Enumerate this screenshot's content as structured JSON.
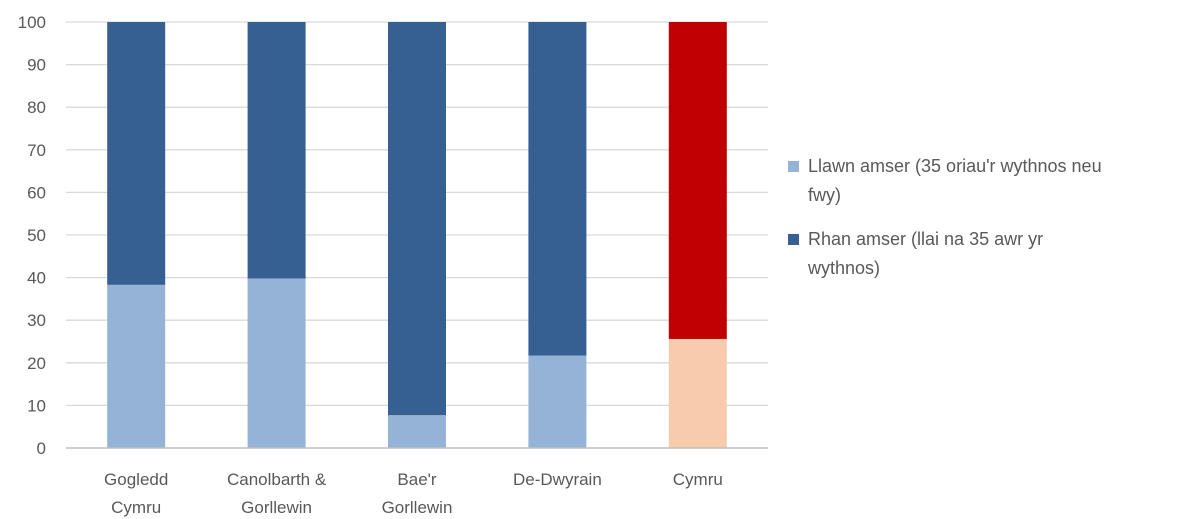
{
  "chart_data": {
    "type": "bar",
    "stacked": true,
    "categories": [
      [
        "Gogledd",
        "Cymru"
      ],
      [
        "Canolbarth &",
        "Gorllewin"
      ],
      [
        "Bae'r",
        "Gorllewin"
      ],
      [
        "De-Dwyrain"
      ],
      [
        "Cymru"
      ]
    ],
    "series": [
      {
        "name": "Llawn amser (35 oriau'r wythnos neu fwy)",
        "legend_lines": [
          "Llawn amser (35 oriau'r wythnos neu",
          "fwy)"
        ],
        "color": "#95b3d7",
        "values": [
          38.3,
          39.8,
          7.7,
          21.7,
          25.6
        ],
        "highlight_colors": {
          "4": "#f8cbad"
        }
      },
      {
        "name": "Rhan amser (llai na 35 awr yr wythnos)",
        "legend_lines": [
          "Rhan amser (llai na 35 awr yr",
          "wythnos)"
        ],
        "color": "#366092",
        "values": [
          61.7,
          60.2,
          92.3,
          78.3,
          74.4
        ],
        "highlight_colors": {
          "4": "#c00000"
        }
      }
    ],
    "yticks": [
      0,
      10,
      20,
      30,
      40,
      50,
      60,
      70,
      80,
      90,
      100
    ],
    "ylim": [
      0,
      100
    ],
    "title": "",
    "xlabel": "",
    "ylabel": "",
    "grid": true,
    "legend_position": "right",
    "gridline_color": "#d9d9d9",
    "axis_color": "#bfbfbf",
    "text_color": "#595959"
  }
}
